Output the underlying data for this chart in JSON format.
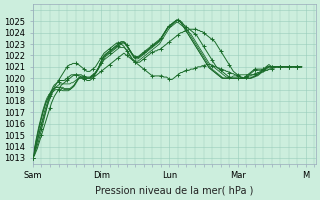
{
  "background_color": "#cceedd",
  "grid_color": "#aaccbb",
  "line_color": "#1a6b2a",
  "ylabel_text": "Pression niveau de la mer( hPa )",
  "ylim": [
    1013,
    1026
  ],
  "yticks": [
    1013,
    1014,
    1015,
    1016,
    1017,
    1018,
    1019,
    1020,
    1021,
    1022,
    1023,
    1024,
    1025
  ],
  "x_day_labels": [
    "Sam",
    "Dim",
    "Lun",
    "Mar",
    "M"
  ],
  "x_day_positions": [
    0,
    48,
    96,
    144,
    192
  ],
  "total_hours": 200,
  "series": [
    [
      1013.0,
      1013.2,
      1013.5,
      1013.8,
      1014.2,
      1014.6,
      1015.0,
      1015.4,
      1015.8,
      1016.2,
      1016.6,
      1017.0,
      1017.4,
      1017.8,
      1018.1,
      1018.4,
      1018.6,
      1018.8,
      1019.0,
      1019.2,
      1019.4,
      1019.5,
      1019.6,
      1019.7,
      1019.8,
      1019.9,
      1020.0,
      1020.1,
      1020.2,
      1020.3,
      1020.3,
      1020.3,
      1020.2,
      1020.2,
      1020.1,
      1020.0,
      1019.9,
      1019.9,
      1019.8,
      1019.8,
      1019.8,
      1019.9,
      1020.0,
      1020.1,
      1020.2,
      1020.3,
      1020.4,
      1020.5,
      1020.6,
      1020.7,
      1020.8,
      1020.9,
      1021.0,
      1021.1,
      1021.2,
      1021.3,
      1021.4,
      1021.5,
      1021.6,
      1021.7,
      1021.8,
      1021.9,
      1022.0,
      1022.1,
      1022.2,
      1022.1,
      1022.0,
      1021.9,
      1021.8,
      1021.7,
      1021.6,
      1021.5,
      1021.4,
      1021.3,
      1021.2,
      1021.1,
      1021.0,
      1020.9,
      1020.8,
      1020.7,
      1020.6,
      1020.5,
      1020.4,
      1020.3,
      1020.2,
      1020.2,
      1020.2,
      1020.2,
      1020.2,
      1020.2,
      1020.2,
      1020.2,
      1020.1,
      1020.1,
      1020.1,
      1020.0,
      1019.9,
      1019.9,
      1019.9,
      1020.0,
      1020.1,
      1020.2,
      1020.3,
      1020.4,
      1020.5,
      1020.5,
      1020.6,
      1020.6,
      1020.7,
      1020.7,
      1020.7,
      1020.8,
      1020.8,
      1020.8,
      1020.9,
      1020.9,
      1021.0,
      1021.0,
      1021.0,
      1021.1,
      1021.1,
      1021.1,
      1021.2,
      1021.2,
      1021.2,
      1021.2,
      1021.1,
      1021.1,
      1021.0,
      1021.0,
      1020.9,
      1020.9,
      1020.8,
      1020.8,
      1020.7,
      1020.7,
      1020.6,
      1020.6,
      1020.5,
      1020.5,
      1020.4,
      1020.4,
      1020.3,
      1020.3,
      1020.2,
      1020.2,
      1020.1,
      1020.1,
      1020.0,
      1020.0,
      1020.1,
      1020.1,
      1020.2,
      1020.2,
      1020.3,
      1020.3,
      1020.4,
      1020.4,
      1020.5,
      1020.5,
      1020.6,
      1020.7,
      1020.8,
      1020.9,
      1021.0,
      1021.1,
      1021.2,
      1021.1,
      1021.0,
      1021.0,
      1021.0,
      1021.0,
      1021.0,
      1021.0,
      1021.0,
      1021.0,
      1021.0,
      1021.0,
      1021.0,
      1021.0,
      1021.0,
      1021.0,
      1021.0,
      1021.0,
      1021.0,
      1021.0,
      1021.0,
      1021.0,
      1021.0,
      1021.0
    ],
    [
      1013.0,
      1013.3,
      1013.7,
      1014.1,
      1014.5,
      1015.0,
      1015.5,
      1016.0,
      1016.5,
      1017.0,
      1017.5,
      1018.0,
      1018.4,
      1018.7,
      1019.0,
      1019.2,
      1019.4,
      1019.6,
      1019.8,
      1020.0,
      1020.2,
      1020.4,
      1020.6,
      1020.8,
      1021.0,
      1021.1,
      1021.2,
      1021.2,
      1021.3,
      1021.3,
      1021.3,
      1021.2,
      1021.2,
      1021.1,
      1021.0,
      1020.9,
      1020.8,
      1020.7,
      1020.6,
      1020.6,
      1020.6,
      1020.7,
      1020.8,
      1020.9,
      1021.0,
      1021.2,
      1021.4,
      1021.6,
      1021.8,
      1022.0,
      1022.2,
      1022.3,
      1022.4,
      1022.5,
      1022.6,
      1022.7,
      1022.8,
      1022.9,
      1023.0,
      1023.1,
      1023.1,
      1023.1,
      1023.0,
      1022.9,
      1022.8,
      1022.6,
      1022.4,
      1022.2,
      1022.0,
      1021.8,
      1021.6,
      1021.5,
      1021.4,
      1021.4,
      1021.4,
      1021.4,
      1021.5,
      1021.6,
      1021.7,
      1021.8,
      1021.9,
      1022.0,
      1022.1,
      1022.2,
      1022.3,
      1022.3,
      1022.4,
      1022.4,
      1022.5,
      1022.5,
      1022.6,
      1022.7,
      1022.8,
      1022.9,
      1023.0,
      1023.1,
      1023.2,
      1023.3,
      1023.4,
      1023.5,
      1023.6,
      1023.7,
      1023.8,
      1023.9,
      1024.0,
      1024.0,
      1024.1,
      1024.1,
      1024.2,
      1024.2,
      1024.3,
      1024.3,
      1024.3,
      1024.3,
      1024.3,
      1024.3,
      1024.2,
      1024.2,
      1024.1,
      1024.1,
      1024.0,
      1023.9,
      1023.8,
      1023.7,
      1023.6,
      1023.5,
      1023.4,
      1023.3,
      1023.2,
      1023.0,
      1022.8,
      1022.6,
      1022.4,
      1022.2,
      1022.0,
      1021.8,
      1021.6,
      1021.4,
      1021.2,
      1021.0,
      1020.8,
      1020.6,
      1020.5,
      1020.4,
      1020.3,
      1020.2,
      1020.1,
      1020.0,
      1020.0,
      1020.0,
      1020.1,
      1020.2,
      1020.3,
      1020.4,
      1020.5,
      1020.6,
      1020.7,
      1020.7,
      1020.7,
      1020.7,
      1020.7,
      1020.7,
      1020.7,
      1020.7,
      1020.7,
      1020.7,
      1020.8,
      1020.8,
      1020.8,
      1020.9,
      1020.9,
      1021.0,
      1021.0,
      1021.0,
      1021.0,
      1021.0,
      1021.0,
      1021.0,
      1021.0,
      1021.0,
      1021.0,
      1021.0,
      1021.0,
      1021.0,
      1021.0,
      1021.0,
      1021.0,
      1021.0,
      1021.0,
      1021.0
    ],
    [
      1013.0,
      1013.5,
      1014.0,
      1014.5,
      1015.0,
      1015.5,
      1016.0,
      1016.5,
      1017.0,
      1017.4,
      1017.8,
      1018.2,
      1018.6,
      1018.9,
      1019.2,
      1019.4,
      1019.5,
      1019.6,
      1019.7,
      1019.8,
      1019.8,
      1019.8,
      1019.8,
      1019.9,
      1020.0,
      1020.1,
      1020.2,
      1020.3,
      1020.3,
      1020.3,
      1020.3,
      1020.3,
      1020.3,
      1020.3,
      1020.3,
      1020.2,
      1020.2,
      1020.1,
      1020.1,
      1020.1,
      1020.1,
      1020.2,
      1020.3,
      1020.4,
      1020.5,
      1020.7,
      1020.9,
      1021.1,
      1021.3,
      1021.5,
      1021.7,
      1021.9,
      1022.0,
      1022.1,
      1022.2,
      1022.3,
      1022.4,
      1022.5,
      1022.6,
      1022.7,
      1022.8,
      1022.9,
      1023.0,
      1023.1,
      1023.1,
      1023.0,
      1022.9,
      1022.7,
      1022.5,
      1022.3,
      1022.1,
      1022.0,
      1021.9,
      1021.9,
      1021.9,
      1022.0,
      1022.1,
      1022.2,
      1022.3,
      1022.4,
      1022.5,
      1022.6,
      1022.7,
      1022.8,
      1022.9,
      1023.0,
      1023.1,
      1023.2,
      1023.3,
      1023.4,
      1023.5,
      1023.7,
      1023.9,
      1024.1,
      1024.3,
      1024.5,
      1024.6,
      1024.7,
      1024.8,
      1024.9,
      1025.0,
      1025.1,
      1025.1,
      1025.0,
      1024.9,
      1024.8,
      1024.7,
      1024.6,
      1024.5,
      1024.4,
      1024.3,
      1024.2,
      1024.1,
      1024.0,
      1023.9,
      1023.8,
      1023.6,
      1023.4,
      1023.2,
      1023.0,
      1022.8,
      1022.6,
      1022.4,
      1022.2,
      1022.0,
      1021.8,
      1021.6,
      1021.4,
      1021.2,
      1021.0,
      1020.9,
      1020.8,
      1020.7,
      1020.6,
      1020.5,
      1020.4,
      1020.3,
      1020.2,
      1020.1,
      1020.0,
      1020.0,
      1020.0,
      1020.0,
      1020.0,
      1020.0,
      1020.0,
      1020.0,
      1020.0,
      1020.0,
      1020.1,
      1020.2,
      1020.3,
      1020.4,
      1020.5,
      1020.6,
      1020.7,
      1020.8,
      1020.8,
      1020.8,
      1020.8,
      1020.8,
      1020.8,
      1020.8,
      1020.8,
      1020.9,
      1020.9,
      1021.0,
      1021.0,
      1021.0,
      1021.0,
      1021.0,
      1021.0,
      1021.0,
      1021.0,
      1021.0,
      1021.0,
      1021.0,
      1021.0,
      1021.0,
      1021.0,
      1021.0,
      1021.0,
      1021.0,
      1021.0,
      1021.0,
      1021.0,
      1021.0,
      1021.0,
      1021.0,
      1021.0
    ],
    [
      1013.0,
      1013.4,
      1013.9,
      1014.4,
      1014.9,
      1015.4,
      1015.9,
      1016.3,
      1016.7,
      1017.1,
      1017.5,
      1017.9,
      1018.2,
      1018.5,
      1018.8,
      1019.0,
      1019.2,
      1019.3,
      1019.4,
      1019.5,
      1019.5,
      1019.5,
      1019.5,
      1019.5,
      1019.5,
      1019.5,
      1019.5,
      1019.6,
      1019.6,
      1019.7,
      1019.8,
      1019.9,
      1020.0,
      1020.0,
      1020.0,
      1020.0,
      1020.0,
      1020.0,
      1020.0,
      1020.0,
      1020.0,
      1020.1,
      1020.2,
      1020.3,
      1020.4,
      1020.6,
      1020.8,
      1021.0,
      1021.2,
      1021.4,
      1021.6,
      1021.7,
      1021.8,
      1021.9,
      1022.0,
      1022.1,
      1022.2,
      1022.3,
      1022.4,
      1022.5,
      1022.6,
      1022.7,
      1022.7,
      1022.7,
      1022.7,
      1022.6,
      1022.5,
      1022.3,
      1022.1,
      1021.9,
      1021.7,
      1021.6,
      1021.5,
      1021.5,
      1021.5,
      1021.6,
      1021.7,
      1021.8,
      1021.9,
      1022.0,
      1022.1,
      1022.2,
      1022.3,
      1022.4,
      1022.5,
      1022.6,
      1022.7,
      1022.8,
      1022.9,
      1023.0,
      1023.2,
      1023.4,
      1023.6,
      1023.8,
      1024.0,
      1024.2,
      1024.4,
      1024.5,
      1024.6,
      1024.7,
      1024.8,
      1024.9,
      1024.9,
      1024.8,
      1024.7,
      1024.6,
      1024.5,
      1024.4,
      1024.3,
      1024.2,
      1024.0,
      1023.9,
      1023.7,
      1023.5,
      1023.3,
      1023.1,
      1022.9,
      1022.7,
      1022.5,
      1022.3,
      1022.1,
      1021.9,
      1021.7,
      1021.5,
      1021.3,
      1021.2,
      1021.1,
      1021.0,
      1020.9,
      1020.8,
      1020.7,
      1020.6,
      1020.5,
      1020.4,
      1020.3,
      1020.2,
      1020.1,
      1020.1,
      1020.1,
      1020.1,
      1020.1,
      1020.2,
      1020.2,
      1020.2,
      1020.3,
      1020.3,
      1020.3,
      1020.3,
      1020.3,
      1020.3,
      1020.3,
      1020.3,
      1020.3,
      1020.3,
      1020.3,
      1020.3,
      1020.3,
      1020.3,
      1020.4,
      1020.4,
      1020.5,
      1020.5,
      1020.6,
      1020.6,
      1020.7,
      1020.7,
      1020.8,
      1020.8,
      1020.9,
      1020.9,
      1021.0,
      1021.0,
      1021.0,
      1021.0,
      1021.0,
      1021.0,
      1021.0,
      1021.0,
      1021.0,
      1021.0,
      1021.0,
      1021.0,
      1021.0,
      1021.0,
      1021.0,
      1021.0,
      1021.0,
      1021.0,
      1021.0,
      1021.0
    ],
    [
      1013.0,
      1013.6,
      1014.2,
      1014.8,
      1015.4,
      1016.0,
      1016.5,
      1017.0,
      1017.4,
      1017.8,
      1018.1,
      1018.4,
      1018.6,
      1018.8,
      1019.0,
      1019.1,
      1019.2,
      1019.2,
      1019.2,
      1019.2,
      1019.2,
      1019.2,
      1019.1,
      1019.1,
      1019.1,
      1019.1,
      1019.1,
      1019.2,
      1019.3,
      1019.4,
      1019.6,
      1019.8,
      1020.0,
      1020.1,
      1020.1,
      1020.1,
      1020.1,
      1020.1,
      1020.0,
      1020.0,
      1020.0,
      1020.1,
      1020.2,
      1020.3,
      1020.5,
      1020.7,
      1020.9,
      1021.2,
      1021.5,
      1021.7,
      1021.9,
      1022.0,
      1022.1,
      1022.2,
      1022.3,
      1022.4,
      1022.5,
      1022.6,
      1022.7,
      1022.8,
      1022.9,
      1023.0,
      1023.1,
      1023.1,
      1023.1,
      1023.0,
      1022.8,
      1022.6,
      1022.4,
      1022.2,
      1022.0,
      1021.8,
      1021.7,
      1021.7,
      1021.7,
      1021.8,
      1021.9,
      1022.0,
      1022.1,
      1022.2,
      1022.3,
      1022.4,
      1022.5,
      1022.6,
      1022.7,
      1022.8,
      1022.9,
      1023.0,
      1023.1,
      1023.2,
      1023.4,
      1023.6,
      1023.8,
      1024.0,
      1024.2,
      1024.4,
      1024.5,
      1024.6,
      1024.7,
      1024.8,
      1024.9,
      1025.0,
      1025.1,
      1025.1,
      1025.0,
      1024.9,
      1024.7,
      1024.5,
      1024.3,
      1024.1,
      1023.9,
      1023.7,
      1023.5,
      1023.3,
      1023.1,
      1022.9,
      1022.7,
      1022.5,
      1022.3,
      1022.1,
      1021.9,
      1021.7,
      1021.5,
      1021.3,
      1021.1,
      1020.9,
      1020.8,
      1020.7,
      1020.6,
      1020.5,
      1020.4,
      1020.3,
      1020.2,
      1020.1,
      1020.0,
      1020.0,
      1020.0,
      1020.0,
      1020.0,
      1020.0,
      1020.0,
      1020.0,
      1020.0,
      1020.0,
      1020.0,
      1020.0,
      1020.0,
      1020.0,
      1020.0,
      1020.0,
      1020.0,
      1020.0,
      1020.0,
      1020.0,
      1020.1,
      1020.1,
      1020.2,
      1020.2,
      1020.3,
      1020.4,
      1020.5,
      1020.6,
      1020.7,
      1020.8,
      1020.9,
      1021.0,
      1021.0,
      1021.0,
      1021.0,
      1021.0,
      1021.0,
      1021.0,
      1021.0,
      1021.0,
      1021.0,
      1021.0,
      1021.0,
      1021.0,
      1021.0,
      1021.0,
      1021.0,
      1021.0,
      1021.0,
      1021.0,
      1021.0,
      1021.0,
      1021.0,
      1021.0,
      1021.0,
      1021.0
    ],
    [
      1013.0,
      1013.8,
      1014.5,
      1015.1,
      1015.7,
      1016.2,
      1016.7,
      1017.2,
      1017.6,
      1018.0,
      1018.3,
      1018.5,
      1018.7,
      1018.9,
      1019.0,
      1019.1,
      1019.2,
      1019.2,
      1019.2,
      1019.2,
      1019.1,
      1019.1,
      1019.0,
      1019.0,
      1019.0,
      1019.0,
      1019.0,
      1019.1,
      1019.2,
      1019.3,
      1019.5,
      1019.7,
      1019.9,
      1020.0,
      1020.0,
      1020.0,
      1020.0,
      1020.0,
      1020.0,
      1020.0,
      1020.0,
      1020.0,
      1020.1,
      1020.2,
      1020.4,
      1020.6,
      1020.8,
      1021.1,
      1021.4,
      1021.7,
      1021.9,
      1022.1,
      1022.2,
      1022.3,
      1022.4,
      1022.5,
      1022.6,
      1022.7,
      1022.8,
      1022.9,
      1023.0,
      1023.1,
      1023.2,
      1023.2,
      1023.2,
      1023.1,
      1022.9,
      1022.7,
      1022.5,
      1022.3,
      1022.1,
      1021.9,
      1021.8,
      1021.8,
      1021.8,
      1021.9,
      1022.0,
      1022.1,
      1022.2,
      1022.3,
      1022.4,
      1022.5,
      1022.6,
      1022.7,
      1022.8,
      1022.9,
      1023.0,
      1023.1,
      1023.2,
      1023.3,
      1023.5,
      1023.7,
      1023.9,
      1024.1,
      1024.3,
      1024.5,
      1024.6,
      1024.7,
      1024.8,
      1024.9,
      1025.0,
      1025.1,
      1025.1,
      1025.0,
      1024.9,
      1024.7,
      1024.5,
      1024.3,
      1024.1,
      1023.9,
      1023.7,
      1023.5,
      1023.3,
      1023.1,
      1022.9,
      1022.7,
      1022.5,
      1022.3,
      1022.1,
      1021.9,
      1021.7,
      1021.5,
      1021.3,
      1021.1,
      1020.9,
      1020.8,
      1020.7,
      1020.6,
      1020.5,
      1020.4,
      1020.3,
      1020.2,
      1020.1,
      1020.0,
      1020.0,
      1020.0,
      1020.0,
      1020.0,
      1020.0,
      1020.0,
      1020.0,
      1020.0,
      1020.0,
      1020.0,
      1020.0,
      1020.0,
      1020.0,
      1020.0,
      1020.0,
      1020.0,
      1020.0,
      1020.0,
      1020.0,
      1020.0,
      1020.0,
      1020.1,
      1020.1,
      1020.2,
      1020.2,
      1020.3,
      1020.4,
      1020.5,
      1020.6,
      1020.7,
      1020.8,
      1020.9,
      1021.0,
      1021.0,
      1021.0,
      1021.0,
      1021.0,
      1021.0,
      1021.0,
      1021.0,
      1021.0,
      1021.0,
      1021.0,
      1021.0,
      1021.0,
      1021.0,
      1021.0,
      1021.0,
      1021.0,
      1021.0,
      1021.0,
      1021.0,
      1021.0,
      1021.0,
      1021.0,
      1021.0
    ],
    [
      1013.0,
      1013.7,
      1014.3,
      1014.9,
      1015.5,
      1016.0,
      1016.5,
      1017.0,
      1017.4,
      1017.8,
      1018.1,
      1018.3,
      1018.5,
      1018.7,
      1018.8,
      1018.9,
      1019.0,
      1019.0,
      1019.0,
      1019.0,
      1019.0,
      1018.9,
      1018.9,
      1018.9,
      1018.9,
      1018.9,
      1019.0,
      1019.1,
      1019.2,
      1019.4,
      1019.6,
      1019.8,
      1020.0,
      1020.1,
      1020.1,
      1020.1,
      1020.0,
      1020.0,
      1020.0,
      1020.0,
      1020.0,
      1020.1,
      1020.2,
      1020.3,
      1020.5,
      1020.7,
      1020.9,
      1021.2,
      1021.5,
      1021.8,
      1022.0,
      1022.1,
      1022.2,
      1022.3,
      1022.4,
      1022.5,
      1022.6,
      1022.7,
      1022.8,
      1022.9,
      1023.0,
      1023.1,
      1023.2,
      1023.2,
      1023.2,
      1023.1,
      1022.9,
      1022.7,
      1022.5,
      1022.3,
      1022.1,
      1021.9,
      1021.8,
      1021.8,
      1021.8,
      1021.9,
      1022.0,
      1022.1,
      1022.2,
      1022.3,
      1022.4,
      1022.5,
      1022.6,
      1022.7,
      1022.8,
      1022.9,
      1023.0,
      1023.1,
      1023.2,
      1023.3,
      1023.5,
      1023.7,
      1023.9,
      1024.1,
      1024.3,
      1024.5,
      1024.6,
      1024.7,
      1024.8,
      1024.9,
      1025.0,
      1025.1,
      1025.1,
      1025.0,
      1024.9,
      1024.7,
      1024.5,
      1024.3,
      1024.1,
      1023.9,
      1023.7,
      1023.5,
      1023.3,
      1023.1,
      1022.9,
      1022.7,
      1022.5,
      1022.3,
      1022.1,
      1021.9,
      1021.7,
      1021.5,
      1021.3,
      1021.1,
      1020.9,
      1020.8,
      1020.7,
      1020.6,
      1020.5,
      1020.4,
      1020.3,
      1020.2,
      1020.1,
      1020.0,
      1020.0,
      1020.0,
      1020.0,
      1020.0,
      1020.0,
      1020.0,
      1020.0,
      1020.0,
      1020.0,
      1020.0,
      1020.0,
      1020.0,
      1020.0,
      1020.0,
      1020.0,
      1020.0,
      1020.0,
      1020.0,
      1020.0,
      1020.0,
      1020.1,
      1020.1,
      1020.2,
      1020.2,
      1020.3,
      1020.4,
      1020.5,
      1020.6,
      1020.7,
      1020.8,
      1020.9,
      1021.0,
      1021.0,
      1021.0,
      1021.0,
      1021.0,
      1021.0,
      1021.0,
      1021.0,
      1021.0,
      1021.0,
      1021.0,
      1021.0,
      1021.0,
      1021.0,
      1021.0,
      1021.0,
      1021.0,
      1021.0,
      1021.0,
      1021.0,
      1021.0,
      1021.0,
      1021.0,
      1021.0,
      1021.0
    ]
  ],
  "marker_series_indices": [
    0,
    1,
    2
  ],
  "marker_interval": 6,
  "xlim": [
    0,
    199
  ],
  "label_fontsize": 7,
  "tick_fontsize": 6
}
